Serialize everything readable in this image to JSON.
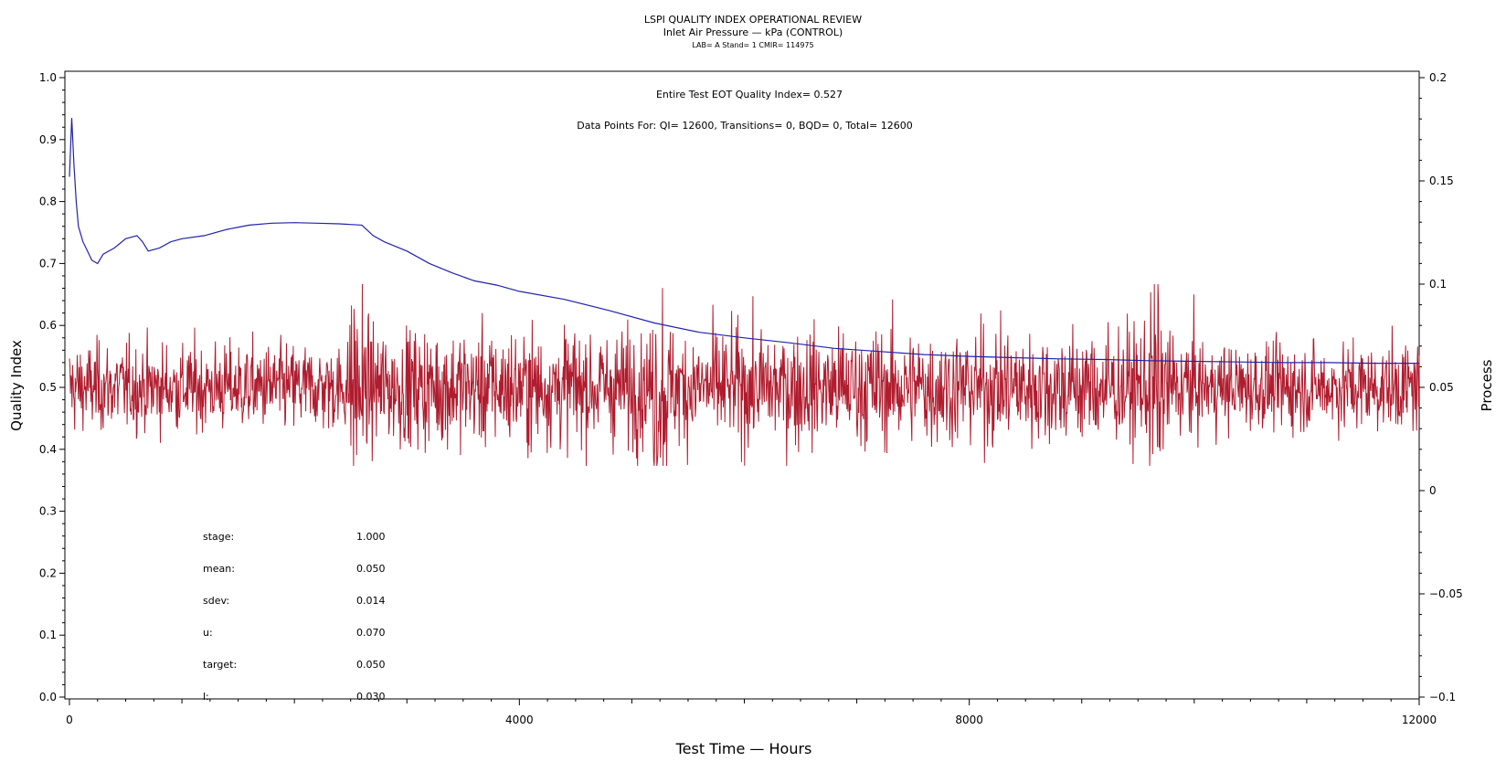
{
  "chart_data": {
    "type": "line",
    "title": "LSPI QUALITY INDEX OPERATIONAL REVIEW",
    "subtitle": "Inlet Air Pressure — kPa (CONTROL)",
    "subtitle2": "LAB= A Stand= 1 CMIR= 114975",
    "xlabel": "Test Time — Hours",
    "ylabel_left": "Quality Index",
    "ylabel_right": "Process",
    "xlim": [
      0,
      12000
    ],
    "ylim_left": [
      0.0,
      1.0
    ],
    "ylim_right": [
      -0.1,
      0.2
    ],
    "x_ticks": [
      "0",
      "4000",
      "8000",
      "12000"
    ],
    "y_left_ticks": [
      "0.0",
      "0.1",
      "0.2",
      "0.3",
      "0.4",
      "0.5",
      "0.6",
      "0.7",
      "0.8",
      "0.9",
      "1.0"
    ],
    "y_right_ticks": [
      "-0.1",
      "-0.05",
      "0",
      "0.05",
      "0.1",
      "0.15",
      "0.2"
    ],
    "annotations": {
      "quality_index": "Entire Test EOT Quality Index=   0.527",
      "data_points": "Data Points For: QI= 12600, Transitions=      0, BQD=      0, Total= 12600"
    },
    "stats": [
      {
        "label": "stage:",
        "value": "1.000"
      },
      {
        "label": "mean:",
        "value": "0.050"
      },
      {
        "label": "sdev:",
        "value": "0.014"
      },
      {
        "label": "u:",
        "value": "0.070"
      },
      {
        "label": "target:",
        "value": "0.050"
      },
      {
        "label": "l:",
        "value": "0.030"
      }
    ],
    "series": [
      {
        "axis": "left",
        "color": "#2222aa",
        "x": [
          0,
          20,
          40,
          60,
          80,
          120,
          160,
          200,
          250,
          300,
          400,
          500,
          600,
          650,
          700,
          800,
          900,
          1000,
          1200,
          1400,
          1600,
          1800,
          2000,
          2200,
          2400,
          2600,
          2700,
          2800,
          3000,
          3200,
          3400,
          3600,
          3800,
          4000,
          4400,
          4800,
          5200,
          5600,
          6000,
          6400,
          6800,
          7200,
          7600,
          8000,
          8400,
          8800,
          9200,
          9600,
          10000,
          10400,
          10800,
          11200,
          11600,
          12000
        ],
        "y": [
          0.84,
          0.935,
          0.86,
          0.8,
          0.76,
          0.735,
          0.72,
          0.705,
          0.7,
          0.715,
          0.725,
          0.74,
          0.745,
          0.735,
          0.72,
          0.725,
          0.735,
          0.74,
          0.745,
          0.755,
          0.762,
          0.765,
          0.766,
          0.765,
          0.764,
          0.762,
          0.745,
          0.735,
          0.72,
          0.7,
          0.685,
          0.672,
          0.665,
          0.655,
          0.642,
          0.624,
          0.604,
          0.589,
          0.58,
          0.572,
          0.563,
          0.558,
          0.553,
          0.55,
          0.548,
          0.546,
          0.545,
          0.543,
          0.542,
          0.541,
          0.54,
          0.54,
          0.539,
          0.539
        ]
      },
      {
        "axis": "right",
        "color": "#b01c2e",
        "n_points": 12600,
        "mean": 0.05,
        "sdev": 0.014,
        "min": 0.012,
        "max": 0.1
      }
    ]
  }
}
